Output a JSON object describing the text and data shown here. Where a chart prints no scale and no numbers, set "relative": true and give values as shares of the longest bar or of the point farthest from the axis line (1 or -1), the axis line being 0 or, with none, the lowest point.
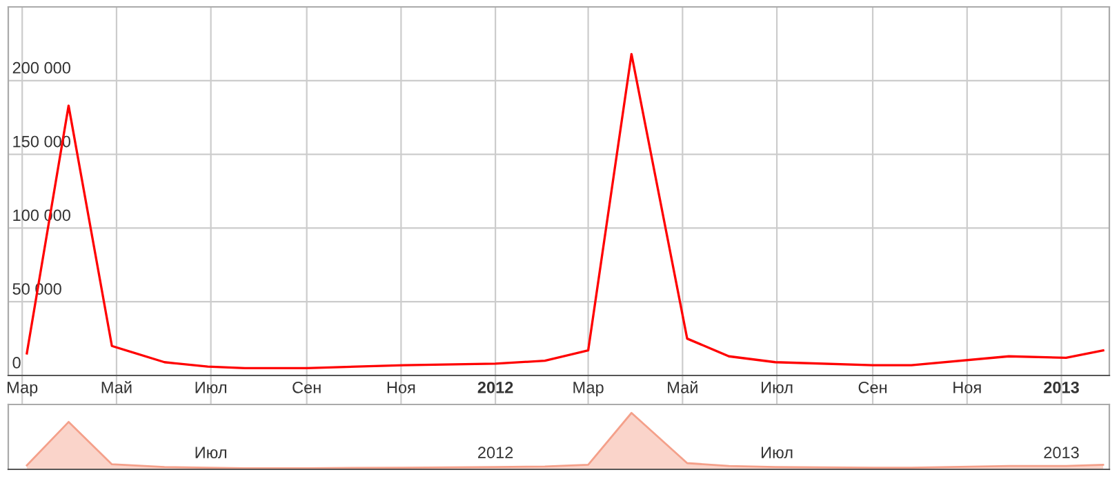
{
  "chart_data": [
    {
      "type": "line",
      "x": [
        "2011-03-04",
        "2011-03-31",
        "2011-04-28",
        "2011-06-01",
        "2011-06-29",
        "2011-07-23",
        "2011-09-01",
        "2011-11-03",
        "2012-01-01",
        "2012-02-02",
        "2012-03-01",
        "2012-03-29",
        "2012-05-04",
        "2012-05-31",
        "2012-06-30",
        "2012-09-01",
        "2012-09-26",
        "2012-11-28",
        "2013-01-04",
        "2013-01-28"
      ],
      "series": [
        {
          "color": "#ff0000",
          "values": [
            15000,
            183000,
            20000,
            9000,
            6000,
            5000,
            5000,
            7000,
            8000,
            10000,
            17000,
            218000,
            25000,
            13000,
            9000,
            7000,
            7000,
            13000,
            12000,
            17000
          ]
        }
      ],
      "xlim": [
        "2011-02-20",
        "2013-02-01"
      ],
      "xticks": [
        {
          "value": "2011-03-01",
          "label": "Мар"
        },
        {
          "value": "2011-05-01",
          "label": "Май"
        },
        {
          "value": "2011-07-01",
          "label": "Июл"
        },
        {
          "value": "2011-09-01",
          "label": "Сен"
        },
        {
          "value": "2011-11-01",
          "label": "Ноя"
        },
        {
          "value": "2012-01-01",
          "label": "2012"
        },
        {
          "value": "2012-03-01",
          "label": "Мар"
        },
        {
          "value": "2012-05-01",
          "label": "Май"
        },
        {
          "value": "2012-07-01",
          "label": "Июл"
        },
        {
          "value": "2012-09-01",
          "label": "Сен"
        },
        {
          "value": "2012-11-01",
          "label": "Ноя"
        },
        {
          "value": "2013-01-01",
          "label": "2013"
        }
      ],
      "ylim": [
        0,
        250000
      ],
      "yticks": [
        0,
        {
          "value": 50000,
          "label": "50 000"
        },
        {
          "value": 100000,
          "label": "100 000"
        },
        {
          "value": 150000,
          "label": "150 000"
        },
        {
          "value": 200000,
          "label": "200 000"
        }
      ],
      "grid": true,
      "marker": "none",
      "line_style": "solid"
    },
    {
      "type": "area",
      "relative": true,
      "x": [
        "2011-03-04",
        "2011-03-31",
        "2011-04-28",
        "2011-06-01",
        "2011-06-29",
        "2011-07-23",
        "2011-09-01",
        "2011-11-03",
        "2012-01-01",
        "2012-02-02",
        "2012-03-01",
        "2012-03-29",
        "2012-05-04",
        "2012-05-31",
        "2012-06-30",
        "2012-09-01",
        "2012-09-26",
        "2012-11-28",
        "2013-01-04",
        "2013-01-28"
      ],
      "series": [
        {
          "color": "#f4a08a",
          "values": [
            0.07,
            0.84,
            0.09,
            0.04,
            0.03,
            0.02,
            0.02,
            0.03,
            0.04,
            0.05,
            0.08,
            1,
            0.11,
            0.06,
            0.04,
            0.03,
            0.03,
            0.06,
            0.06,
            0.08
          ]
        }
      ],
      "xlim": [
        "2011-02-20",
        "2013-02-01"
      ],
      "xticks": [
        {
          "value": "2011-07-01",
          "label": "Июл"
        },
        {
          "value": "2012-01-01",
          "label": "2012"
        },
        {
          "value": "2012-07-01",
          "label": "Июл"
        },
        {
          "value": "2013-01-01",
          "label": "2013"
        }
      ],
      "tick_labels": "x"
    }
  ]
}
